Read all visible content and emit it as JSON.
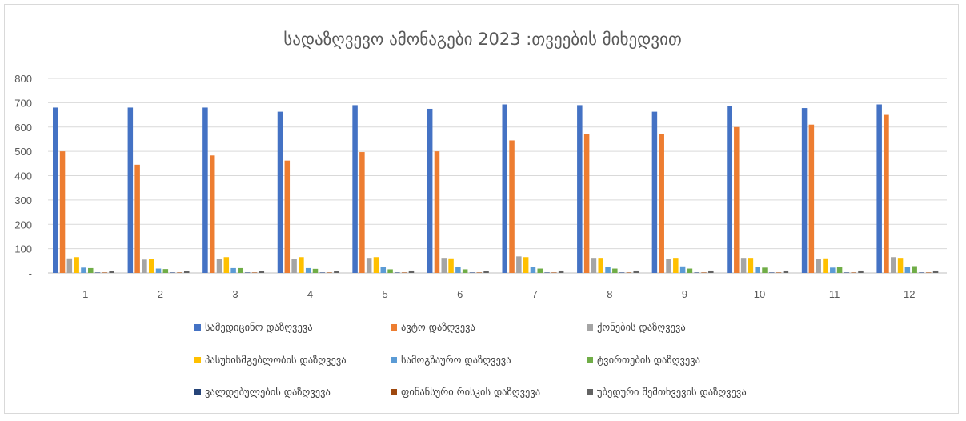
{
  "chart_data": {
    "type": "bar",
    "title": "სადაზღვევო ამონაგები 2023 :თვეების მიხედვით",
    "xlabel": "",
    "ylabel": "",
    "ylim": [
      0,
      800
    ],
    "yticks": [
      0,
      100,
      200,
      300,
      400,
      500,
      600,
      700,
      800
    ],
    "ytick_labels": [
      "-",
      "100",
      "200",
      "300",
      "400",
      "500",
      "600",
      "700",
      "800"
    ],
    "grid": true,
    "legend_position": "bottom",
    "categories": [
      "1",
      "2",
      "3",
      "4",
      "5",
      "6",
      "7",
      "8",
      "9",
      "10",
      "11",
      "12"
    ],
    "series": [
      {
        "name": "სამედიცინო დაზღვევა",
        "color": "#4472C4",
        "values": [
          680,
          680,
          680,
          663,
          690,
          675,
          693,
          690,
          663,
          685,
          678,
          693
        ]
      },
      {
        "name": "ავტო დაზღვევა",
        "color": "#ED7D31",
        "values": [
          500,
          445,
          483,
          462,
          497,
          500,
          545,
          570,
          570,
          600,
          610,
          650
        ]
      },
      {
        "name": "ქონების დაზღვევა",
        "color": "#A5A5A5",
        "values": [
          60,
          55,
          57,
          57,
          62,
          62,
          68,
          62,
          58,
          62,
          58,
          65
        ]
      },
      {
        "name": "პასუხისმგებლობის დაზღვევა",
        "color": "#FFC000",
        "values": [
          65,
          58,
          65,
          65,
          65,
          60,
          65,
          62,
          62,
          62,
          60,
          62
        ]
      },
      {
        "name": "სამოგზაურო დაზღვევა",
        "color": "#5B9BD5",
        "values": [
          22,
          18,
          20,
          20,
          25,
          25,
          25,
          25,
          27,
          25,
          22,
          25
        ]
      },
      {
        "name": "ტვირთების დაზღვევა",
        "color": "#70AD47",
        "values": [
          20,
          16,
          20,
          17,
          15,
          15,
          18,
          18,
          18,
          22,
          25,
          28
        ]
      },
      {
        "name": "ვალდებულების დაზღვევა",
        "color": "#264478",
        "values": [
          2,
          2,
          2,
          2,
          2,
          2,
          2,
          2,
          2,
          2,
          2,
          2
        ]
      },
      {
        "name": "ფინანსური რისკის დაზღვევა",
        "color": "#9E480E",
        "values": [
          2,
          2,
          2,
          2,
          2,
          2,
          2,
          2,
          2,
          2,
          2,
          2
        ]
      },
      {
        "name": "უბედური შემთხვევის დაზღვევა",
        "color": "#636363",
        "values": [
          8,
          8,
          8,
          8,
          10,
          8,
          10,
          10,
          10,
          10,
          10,
          10
        ]
      }
    ]
  }
}
